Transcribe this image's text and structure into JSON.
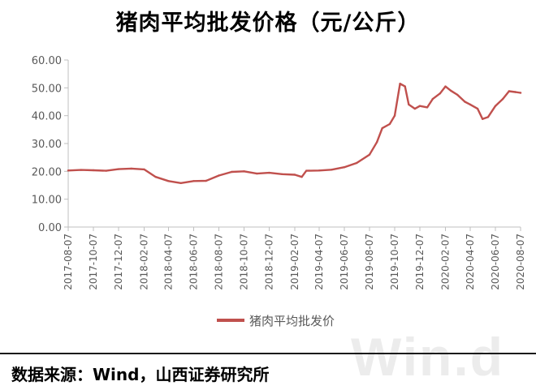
{
  "title": "猪肉平均批发价格（元/公斤）",
  "source_text": "数据来源：Wind，山西证券研究所",
  "watermark": "Win.d",
  "colors": {
    "series": "#c0504d",
    "axis": "#bfbfbf",
    "text": "#595959"
  },
  "chart_data": {
    "type": "line",
    "title": "猪肉平均批发价格（元/公斤）",
    "xlabel": "",
    "ylabel": "",
    "ylim": [
      0,
      60
    ],
    "yticks": [
      "0.00",
      "10.00",
      "20.00",
      "30.00",
      "40.00",
      "50.00",
      "60.00"
    ],
    "xticks": [
      "2017-08-07",
      "2017-10-07",
      "2017-12-07",
      "2018-02-07",
      "2018-04-07",
      "2018-06-07",
      "2018-08-07",
      "2018-10-07",
      "2018-12-07",
      "2019-02-07",
      "2019-04-07",
      "2019-06-07",
      "2019-08-07",
      "2019-10-07",
      "2019-12-07",
      "2020-02-07",
      "2020-04-07",
      "2020-06-07",
      "2020-08-07"
    ],
    "grid": false,
    "legend": "bottom",
    "series": [
      {
        "name": "猪肉平均批发价",
        "x": [
          "2017-08-07",
          "2017-09-07",
          "2017-10-07",
          "2017-11-07",
          "2017-12-07",
          "2018-01-07",
          "2018-02-07",
          "2018-03-07",
          "2018-04-07",
          "2018-05-07",
          "2018-06-07",
          "2018-07-07",
          "2018-08-07",
          "2018-09-07",
          "2018-10-07",
          "2018-11-07",
          "2018-12-07",
          "2019-01-07",
          "2019-02-07",
          "2019-02-24",
          "2019-03-07",
          "2019-04-07",
          "2019-05-07",
          "2019-06-07",
          "2019-07-07",
          "2019-08-07",
          "2019-08-25",
          "2019-09-07",
          "2019-09-25",
          "2019-10-07",
          "2019-10-20",
          "2019-11-01",
          "2019-11-10",
          "2019-11-25",
          "2019-12-07",
          "2019-12-25",
          "2020-01-07",
          "2020-01-25",
          "2020-02-07",
          "2020-02-20",
          "2020-03-07",
          "2020-03-25",
          "2020-04-07",
          "2020-04-25",
          "2020-05-07",
          "2020-05-20",
          "2020-06-07",
          "2020-06-25",
          "2020-07-10",
          "2020-07-25",
          "2020-08-07"
        ],
        "values": [
          20.3,
          20.5,
          20.4,
          20.2,
          20.8,
          21.0,
          20.7,
          18.0,
          16.5,
          15.8,
          16.5,
          16.6,
          18.5,
          19.8,
          20.0,
          19.2,
          19.5,
          19.0,
          18.8,
          18.0,
          20.2,
          20.3,
          20.6,
          21.5,
          23.0,
          26.0,
          30.5,
          35.5,
          37.0,
          40.0,
          51.5,
          50.5,
          44.0,
          42.5,
          43.5,
          43.0,
          46.0,
          48.0,
          50.5,
          49.0,
          47.5,
          45.0,
          44.0,
          42.5,
          38.8,
          39.5,
          43.5,
          46.0,
          48.8,
          48.5,
          48.2
        ]
      }
    ]
  }
}
